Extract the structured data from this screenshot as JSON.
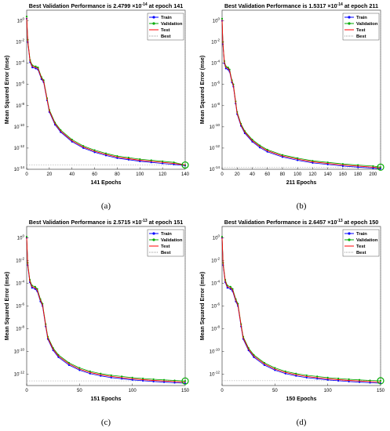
{
  "chart_data": [
    {
      "type": "line",
      "panel_label": "(a)",
      "title_prefix": "Best Validation Performance is 2.4799",
      "title_mult": "×10",
      "title_exp": "-14",
      "title_suffix": " at epoch 141",
      "xlabel": "141 Epochs",
      "ylabel": "Mean Squared Error  (mse)",
      "log_y": true,
      "xlim": [
        0,
        140
      ],
      "ylim_exp": [
        -14,
        1
      ],
      "xticks": [
        0,
        20,
        40,
        60,
        80,
        100,
        120,
        140
      ],
      "yticks_exp": [
        0,
        -2,
        -4,
        -6,
        -8,
        -10,
        -12,
        -14
      ],
      "best_epoch": 141,
      "best_value": 2.4799e-14,
      "legend": [
        "Train",
        "Validation",
        "Test",
        "Best"
      ],
      "colors": {
        "train": "#0000ff",
        "validation": "#00aa00",
        "test": "#ff0000",
        "best": "#999999"
      },
      "series": [
        {
          "name": "Train",
          "x": [
            0,
            1,
            3,
            5,
            8,
            10,
            13,
            15,
            18,
            20,
            25,
            30,
            40,
            50,
            60,
            70,
            80,
            90,
            100,
            110,
            120,
            130,
            140
          ],
          "log10_y": [
            0.2,
            -2.0,
            -3.9,
            -4.4,
            -4.5,
            -4.6,
            -5.5,
            -5.8,
            -7.5,
            -8.6,
            -9.8,
            -10.5,
            -11.4,
            -12.0,
            -12.4,
            -12.7,
            -12.95,
            -13.1,
            -13.25,
            -13.35,
            -13.45,
            -13.55,
            -13.65
          ]
        },
        {
          "name": "Validation",
          "x": [
            0,
            1,
            3,
            5,
            8,
            10,
            13,
            15,
            18,
            20,
            25,
            30,
            40,
            50,
            60,
            70,
            80,
            90,
            100,
            110,
            120,
            130,
            140
          ],
          "log10_y": [
            0.4,
            -1.8,
            -3.7,
            -4.2,
            -4.3,
            -4.4,
            -5.3,
            -5.6,
            -7.3,
            -8.4,
            -9.6,
            -10.3,
            -11.2,
            -11.8,
            -12.2,
            -12.5,
            -12.75,
            -12.9,
            -13.05,
            -13.15,
            -13.25,
            -13.35,
            -13.6
          ]
        },
        {
          "name": "Test",
          "x": [
            0,
            1,
            3,
            5,
            8,
            10,
            13,
            15,
            18,
            20,
            25,
            30,
            40,
            50,
            60,
            70,
            80,
            90,
            100,
            110,
            120,
            130,
            140
          ],
          "log10_y": [
            0.3,
            -1.9,
            -3.8,
            -4.3,
            -4.4,
            -4.5,
            -5.4,
            -5.7,
            -7.4,
            -8.5,
            -9.7,
            -10.4,
            -11.3,
            -11.9,
            -12.3,
            -12.6,
            -12.85,
            -13.0,
            -13.15,
            -13.25,
            -13.35,
            -13.45,
            -13.6
          ]
        }
      ]
    },
    {
      "type": "line",
      "panel_label": "(b)",
      "title_prefix": "Best Validation Performance is 1.5317",
      "title_mult": "×10",
      "title_exp": "-14",
      "title_suffix": " at epoch 211",
      "xlabel": "211 Epochs",
      "ylabel": "Mean Squared Error  (mse)",
      "log_y": true,
      "xlim": [
        0,
        210
      ],
      "ylim_exp": [
        -14,
        1
      ],
      "xticks": [
        0,
        20,
        40,
        60,
        80,
        100,
        120,
        140,
        160,
        180,
        200
      ],
      "yticks_exp": [
        0,
        -2,
        -4,
        -6,
        -8,
        -10,
        -12,
        -14
      ],
      "best_epoch": 211,
      "best_value": 1.5317e-14,
      "legend": [
        "Train",
        "Validation",
        "Test",
        "Best"
      ],
      "colors": {
        "train": "#0000ff",
        "validation": "#00aa00",
        "test": "#ff0000",
        "best": "#999999"
      },
      "series": [
        {
          "name": "Train",
          "x": [
            0,
            1,
            3,
            5,
            8,
            10,
            13,
            15,
            18,
            20,
            25,
            30,
            40,
            50,
            60,
            80,
            100,
            120,
            140,
            160,
            180,
            200,
            210
          ],
          "log10_y": [
            0.0,
            -2.2,
            -4.0,
            -4.5,
            -4.6,
            -4.8,
            -5.8,
            -6.2,
            -7.8,
            -8.8,
            -9.9,
            -10.6,
            -11.4,
            -11.95,
            -12.35,
            -12.85,
            -13.15,
            -13.4,
            -13.55,
            -13.7,
            -13.8,
            -13.9,
            -13.95
          ]
        },
        {
          "name": "Validation",
          "x": [
            0,
            1,
            3,
            5,
            8,
            10,
            13,
            15,
            18,
            20,
            25,
            30,
            40,
            50,
            60,
            80,
            100,
            120,
            140,
            160,
            180,
            200,
            210
          ],
          "log10_y": [
            0.2,
            -2.0,
            -3.8,
            -4.3,
            -4.4,
            -4.6,
            -5.6,
            -6.0,
            -7.6,
            -8.6,
            -9.7,
            -10.4,
            -11.2,
            -11.75,
            -12.15,
            -12.65,
            -12.95,
            -13.2,
            -13.35,
            -13.5,
            -13.6,
            -13.7,
            -13.8
          ]
        },
        {
          "name": "Test",
          "x": [
            0,
            1,
            3,
            5,
            8,
            10,
            13,
            15,
            18,
            20,
            25,
            30,
            40,
            50,
            60,
            80,
            100,
            120,
            140,
            160,
            180,
            200,
            210
          ],
          "log10_y": [
            0.1,
            -2.1,
            -3.9,
            -4.4,
            -4.5,
            -4.7,
            -5.7,
            -6.1,
            -7.7,
            -8.7,
            -9.8,
            -10.5,
            -11.3,
            -11.85,
            -12.25,
            -12.75,
            -13.05,
            -13.3,
            -13.45,
            -13.6,
            -13.7,
            -13.8,
            -13.88
          ]
        }
      ]
    },
    {
      "type": "line",
      "panel_label": "(c)",
      "title_prefix": "Best Validation Performance is 2.5715",
      "title_mult": "×10",
      "title_exp": "-13",
      "title_suffix": " at epoch 151",
      "xlabel": "151 Epochs",
      "ylabel": "Mean Squared Error  (mse)",
      "log_y": true,
      "xlim": [
        0,
        150
      ],
      "ylim_exp": [
        -13,
        1
      ],
      "xticks": [
        0,
        50,
        100,
        150
      ],
      "yticks_exp": [
        0,
        -2,
        -4,
        -6,
        -8,
        -10,
        -12
      ],
      "best_epoch": 151,
      "best_value": 2.5715e-13,
      "legend": [
        "Train",
        "Validation",
        "Test",
        "Best"
      ],
      "colors": {
        "train": "#0000ff",
        "validation": "#00aa00",
        "test": "#ff0000",
        "best": "#999999"
      },
      "series": [
        {
          "name": "Train",
          "x": [
            0,
            1,
            3,
            5,
            8,
            10,
            13,
            15,
            18,
            20,
            25,
            30,
            40,
            50,
            60,
            70,
            80,
            90,
            100,
            110,
            120,
            130,
            140,
            150
          ],
          "log10_y": [
            0.0,
            -2.4,
            -3.9,
            -4.4,
            -4.5,
            -4.7,
            -5.6,
            -6.0,
            -7.8,
            -8.9,
            -9.9,
            -10.5,
            -11.2,
            -11.65,
            -11.95,
            -12.15,
            -12.3,
            -12.4,
            -12.5,
            -12.58,
            -12.65,
            -12.7,
            -12.75,
            -12.8
          ]
        },
        {
          "name": "Validation",
          "x": [
            0,
            1,
            3,
            5,
            8,
            10,
            13,
            15,
            18,
            20,
            25,
            30,
            40,
            50,
            60,
            70,
            80,
            90,
            100,
            110,
            120,
            130,
            140,
            150
          ],
          "log10_y": [
            0.1,
            -2.2,
            -3.7,
            -4.2,
            -4.3,
            -4.5,
            -5.4,
            -5.8,
            -7.6,
            -8.7,
            -9.7,
            -10.3,
            -11.0,
            -11.45,
            -11.75,
            -11.95,
            -12.1,
            -12.2,
            -12.3,
            -12.38,
            -12.45,
            -12.5,
            -12.55,
            -12.6
          ]
        },
        {
          "name": "Test",
          "x": [
            0,
            1,
            3,
            5,
            8,
            10,
            13,
            15,
            18,
            20,
            25,
            30,
            40,
            50,
            60,
            70,
            80,
            90,
            100,
            110,
            120,
            130,
            140,
            150
          ],
          "log10_y": [
            0.05,
            -2.3,
            -3.8,
            -4.3,
            -4.4,
            -4.6,
            -5.5,
            -5.9,
            -7.7,
            -8.8,
            -9.8,
            -10.4,
            -11.1,
            -11.55,
            -11.85,
            -12.05,
            -12.2,
            -12.3,
            -12.4,
            -12.48,
            -12.55,
            -12.6,
            -12.65,
            -12.7
          ]
        }
      ]
    },
    {
      "type": "line",
      "panel_label": "(d)",
      "title_prefix": "Best Validation Performance is 2.6457",
      "title_mult": "×10",
      "title_exp": "-13",
      "title_suffix": " at epoch 150",
      "xlabel": "150 Epochs",
      "ylabel": "Mean Squared Error  (mse)",
      "log_y": true,
      "xlim": [
        0,
        150
      ],
      "ylim_exp": [
        -13,
        1
      ],
      "xticks": [
        0,
        50,
        100,
        150
      ],
      "yticks_exp": [
        0,
        -2,
        -4,
        -6,
        -8,
        -10,
        -12
      ],
      "best_epoch": 150,
      "best_value": 2.6457e-13,
      "legend": [
        "Train",
        "Validation",
        "Test",
        "Best"
      ],
      "colors": {
        "train": "#0000ff",
        "validation": "#00aa00",
        "test": "#ff0000",
        "best": "#999999"
      },
      "series": [
        {
          "name": "Train",
          "x": [
            0,
            1,
            3,
            5,
            8,
            10,
            13,
            15,
            18,
            20,
            25,
            30,
            40,
            50,
            60,
            70,
            80,
            90,
            100,
            110,
            120,
            130,
            140,
            150
          ],
          "log10_y": [
            0.0,
            -2.4,
            -3.9,
            -4.4,
            -4.5,
            -4.7,
            -5.6,
            -6.0,
            -7.8,
            -8.9,
            -9.9,
            -10.5,
            -11.2,
            -11.65,
            -11.95,
            -12.15,
            -12.3,
            -12.4,
            -12.5,
            -12.58,
            -12.65,
            -12.7,
            -12.75,
            -12.8
          ]
        },
        {
          "name": "Validation",
          "x": [
            0,
            1,
            3,
            5,
            8,
            10,
            13,
            15,
            18,
            20,
            25,
            30,
            40,
            50,
            60,
            70,
            80,
            90,
            100,
            110,
            120,
            130,
            140,
            150
          ],
          "log10_y": [
            0.1,
            -2.2,
            -3.7,
            -4.2,
            -4.3,
            -4.5,
            -5.4,
            -5.8,
            -7.6,
            -8.7,
            -9.7,
            -10.3,
            -11.0,
            -11.45,
            -11.75,
            -11.95,
            -12.1,
            -12.2,
            -12.3,
            -12.38,
            -12.45,
            -12.5,
            -12.55,
            -12.58
          ]
        },
        {
          "name": "Test",
          "x": [
            0,
            1,
            3,
            5,
            8,
            10,
            13,
            15,
            18,
            20,
            25,
            30,
            40,
            50,
            60,
            70,
            80,
            90,
            100,
            110,
            120,
            130,
            140,
            150
          ],
          "log10_y": [
            0.05,
            -2.3,
            -3.8,
            -4.3,
            -4.4,
            -4.6,
            -5.5,
            -5.9,
            -7.7,
            -8.8,
            -9.8,
            -10.4,
            -11.1,
            -11.55,
            -11.85,
            -12.05,
            -12.2,
            -12.3,
            -12.4,
            -12.48,
            -12.55,
            -12.6,
            -12.65,
            -12.7
          ]
        }
      ]
    }
  ]
}
